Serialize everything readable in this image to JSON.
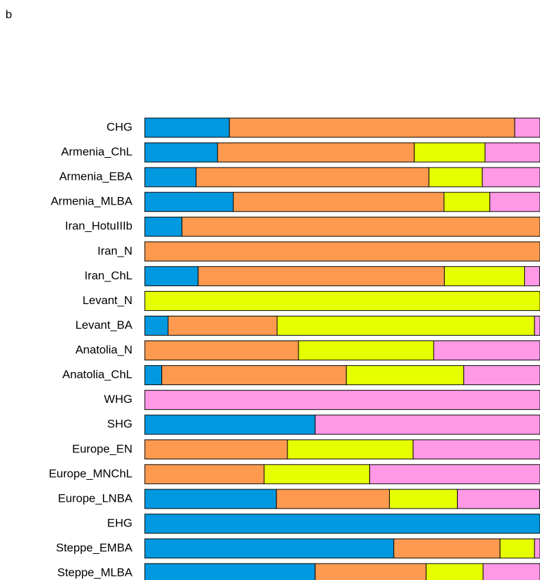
{
  "panel_label": "b",
  "chart_data": {
    "type": "stacked_bar_horizontal",
    "categories": [
      "CHG",
      "Armenia_ChL",
      "Armenia_EBA",
      "Armenia_MLBA",
      "Iran_HotuIIIb",
      "Iran_N",
      "Iran_ChL",
      "Levant_N",
      "Levant_BA",
      "Anatolia_N",
      "Anatolia_ChL",
      "WHG",
      "SHG",
      "Europe_EN",
      "Europe_MNChL",
      "Europe_LNBA",
      "EHG",
      "Steppe_EMBA",
      "Steppe_MLBA"
    ],
    "series": [
      {
        "color": "#0099e0",
        "values": [
          21.4,
          18.4,
          13.0,
          22.4,
          9.4,
          0,
          13.5,
          0,
          5.9,
          0,
          4.3,
          0,
          43.1,
          0,
          0,
          33.3,
          100,
          63.0,
          43.1
        ]
      },
      {
        "color": "#fd9a4f",
        "values": [
          72.2,
          49.8,
          58.9,
          53.3,
          90.6,
          100,
          62.3,
          0,
          27.6,
          38.9,
          46.7,
          0,
          0,
          36.1,
          30.2,
          28.6,
          0,
          26.9,
          28.1
        ]
      },
      {
        "color": "#e6ff00",
        "values": [
          0,
          17.9,
          13.5,
          11.6,
          0,
          0,
          20.3,
          100,
          65.1,
          34.2,
          29.7,
          0,
          0,
          31.8,
          26.7,
          17.2,
          0,
          8.7,
          14.4
        ]
      },
      {
        "color": "#ff99e6",
        "values": [
          6.4,
          13.9,
          14.6,
          12.7,
          0,
          0,
          3.8,
          0,
          1.4,
          26.9,
          19.3,
          100,
          56.9,
          32.1,
          43.1,
          20.8,
          0,
          1.4,
          14.4
        ]
      }
    ],
    "xlim": [
      0,
      100
    ]
  }
}
